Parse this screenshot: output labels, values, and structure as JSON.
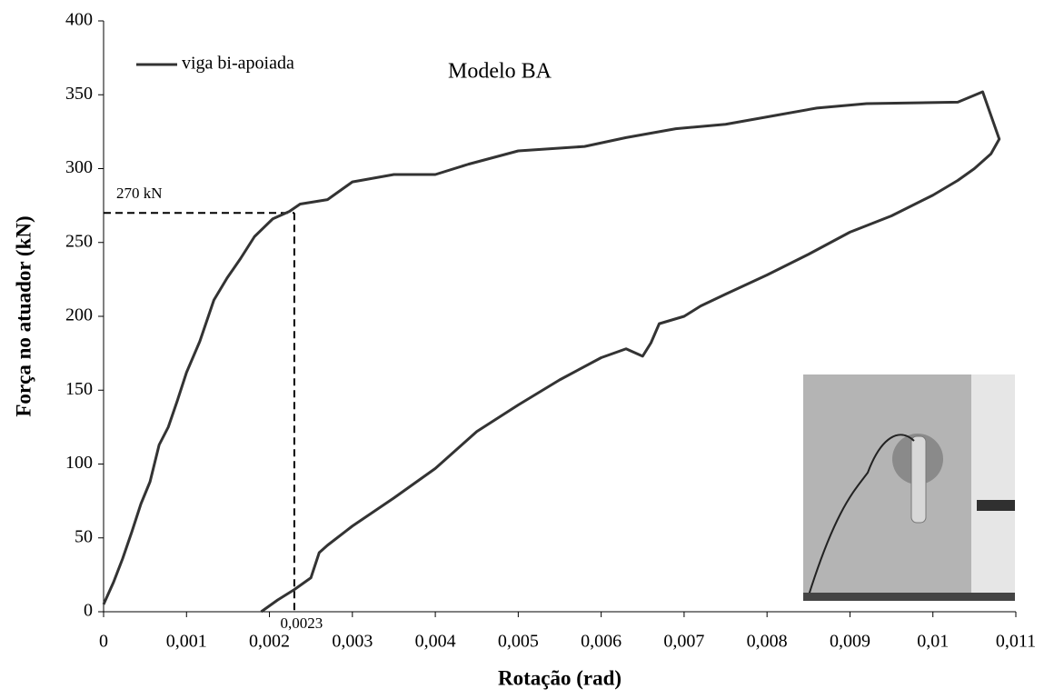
{
  "chart_data": {
    "type": "line",
    "annotation": "Modelo BA",
    "x_label": "Rotação (rad)",
    "y_label": "Força no atuador (kN)",
    "x": [
      0,
      0.00012,
      0.00023,
      0.00034,
      0.00045,
      0.00056,
      0.00067,
      0.00078,
      0.00089,
      0.001,
      0.00116,
      0.00133,
      0.00149,
      0.00165,
      0.00182,
      0.00204,
      0.00224,
      0.00237,
      0.0027,
      0.003,
      0.0035,
      0.004,
      0.0044,
      0.005,
      0.0058,
      0.0063,
      0.0069,
      0.0075,
      0.0081,
      0.0086,
      0.0092,
      0.0103,
      0.0106,
      0.0108,
      0.0107,
      0.0105,
      0.0103,
      0.01,
      0.0095,
      0.009,
      0.0085,
      0.008,
      0.0075,
      0.0072,
      0.007,
      0.0067,
      0.0066,
      0.0065,
      0.0063,
      0.006,
      0.0055,
      0.005,
      0.0045,
      0.004,
      0.0035,
      0.003,
      0.0027,
      0.0026,
      0.0025,
      0.0023,
      0.0021,
      0.0019
    ],
    "series": [
      {
        "name": "viga bi-apoiada",
        "color": "#333333",
        "values": [
          5,
          20,
          36,
          54,
          73,
          88,
          113,
          125,
          143,
          162,
          183,
          211,
          226,
          239,
          254,
          266,
          271,
          276,
          279,
          291,
          296,
          296,
          303,
          312,
          315,
          321,
          327,
          330,
          336,
          341,
          344,
          345,
          352,
          320,
          310,
          300,
          292,
          282,
          268,
          257,
          242,
          228,
          215,
          207,
          200,
          195,
          182,
          173,
          178,
          172,
          157,
          140,
          122,
          97,
          77,
          58,
          45,
          40,
          23,
          15,
          8,
          0
        ]
      }
    ],
    "reference_lines": [
      {
        "axis": "y",
        "value": 270,
        "label": "270 kN"
      },
      {
        "axis": "x",
        "value": 0.0023,
        "label": "0,0023"
      }
    ],
    "xlim": [
      0,
      0.011
    ],
    "ylim": [
      0,
      400
    ],
    "xticks": [
      {
        "value": 0,
        "label": "0"
      },
      {
        "value": 0.001,
        "label": "0,001"
      },
      {
        "value": 0.002,
        "label": "0,002"
      },
      {
        "value": 0.003,
        "label": "0,003"
      },
      {
        "value": 0.004,
        "label": "0,004"
      },
      {
        "value": 0.005,
        "label": "0,005"
      },
      {
        "value": 0.006,
        "label": "0,006"
      },
      {
        "value": 0.007,
        "label": "0,007"
      },
      {
        "value": 0.008,
        "label": "0,008"
      },
      {
        "value": 0.009,
        "label": "0,009"
      },
      {
        "value": 0.01,
        "label": "0,01"
      },
      {
        "value": 0.011,
        "label": "0,011"
      }
    ],
    "yticks": [
      0,
      50,
      100,
      150,
      200,
      250,
      300,
      350,
      400
    ],
    "grid": false,
    "legend": "top-left"
  }
}
